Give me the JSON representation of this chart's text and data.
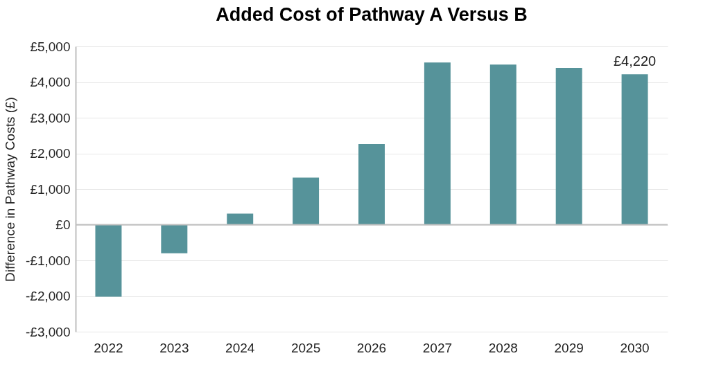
{
  "chart_data": {
    "type": "bar",
    "title": "Added Cost of Pathway A Versus B",
    "ylabel": "Difference in Pathway Costs (£)",
    "categories": [
      "2022",
      "2023",
      "2024",
      "2025",
      "2026",
      "2027",
      "2028",
      "2029",
      "2030"
    ],
    "values": [
      -2020,
      -800,
      310,
      1320,
      2260,
      4550,
      4490,
      4400,
      4220
    ],
    "value_labels": [
      null,
      null,
      null,
      null,
      null,
      null,
      null,
      null,
      "£4,220"
    ],
    "color": "#56939a",
    "ylim": [
      -3000,
      5000
    ],
    "yticks": [
      {
        "value": -3000,
        "label": "-£3,000"
      },
      {
        "value": -2000,
        "label": "-£2,000"
      },
      {
        "value": -1000,
        "label": "-£1,000"
      },
      {
        "value": 0,
        "label": "£0"
      },
      {
        "value": 1000,
        "label": "£1,000"
      },
      {
        "value": 2000,
        "label": "£2,000"
      },
      {
        "value": 3000,
        "label": "£3,000"
      },
      {
        "value": 4000,
        "label": "£4,000"
      },
      {
        "value": 5000,
        "label": "£5,000"
      }
    ],
    "grid": "y",
    "ref_lines": [
      {
        "axis": "y",
        "value": 0,
        "color": "#bfbfbf"
      }
    ]
  }
}
